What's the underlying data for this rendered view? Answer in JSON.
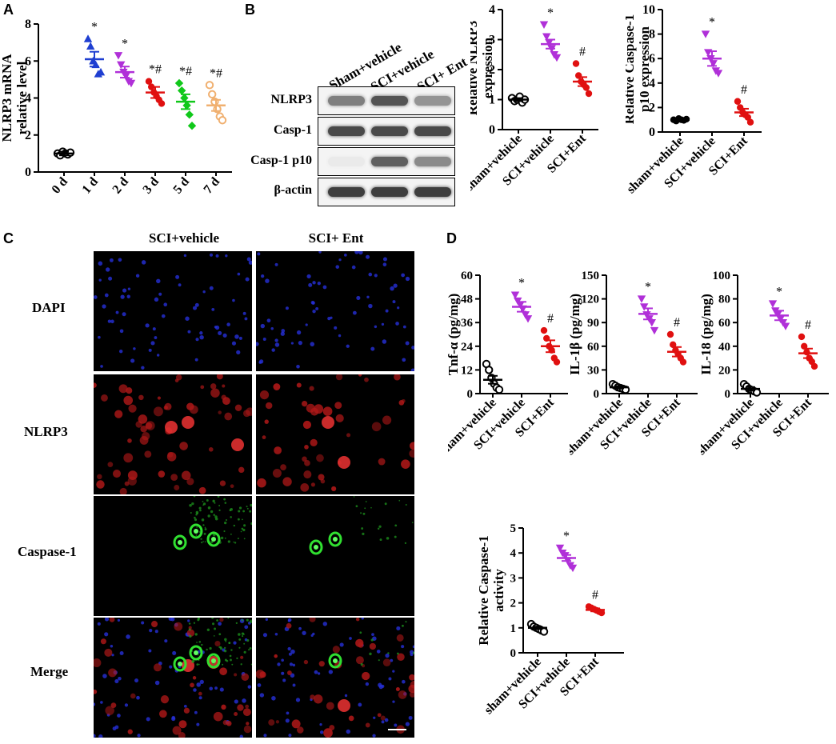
{
  "panels": [
    "A",
    "B",
    "C",
    "D"
  ],
  "colors": {
    "blue": "#1f3fd1",
    "purple": "#b030d8",
    "red": "#e01010",
    "green": "#10c81a",
    "orange": "#f0b070",
    "black": "#000000",
    "magenta": "#b030d8"
  },
  "blot": {
    "lanes": [
      "Sham+vehicle",
      "SCI+vehicle",
      "SCI+ Ent"
    ],
    "rows": [
      "NLRP3",
      "Casp-1",
      "Casp-1 p10",
      "β-actin"
    ],
    "band_intensity": [
      [
        0.55,
        0.75,
        0.45
      ],
      [
        0.8,
        0.8,
        0.8
      ],
      [
        0.05,
        0.7,
        0.5
      ],
      [
        0.85,
        0.85,
        0.85
      ]
    ]
  },
  "micro": {
    "columns": [
      "SCI+vehicle",
      "SCI+ Ent"
    ],
    "rows": [
      "DAPI",
      "NLRP3",
      "Caspase-1",
      "Merge"
    ]
  },
  "chart_data": [
    {
      "id": "A",
      "type": "scatter",
      "ylabel": "NLRP3 mRNA relative level",
      "categories": [
        "0 d",
        "1 d",
        "2 d",
        "3 d",
        "5 d",
        "7 d"
      ],
      "ylim": [
        0,
        8
      ],
      "yticks": [
        0,
        2,
        4,
        6,
        8
      ],
      "means": [
        1.0,
        6.1,
        5.4,
        4.3,
        3.8,
        3.6
      ],
      "sem": [
        0.1,
        0.4,
        0.3,
        0.3,
        0.4,
        0.3
      ],
      "points": [
        [
          1.0,
          0.9,
          1.1,
          1.0,
          0.95,
          1.05
        ],
        [
          7.2,
          6.8,
          6.0,
          5.8,
          5.3,
          5.4
        ],
        [
          6.3,
          5.8,
          5.4,
          5.2,
          4.9,
          4.8
        ],
        [
          4.9,
          4.6,
          4.3,
          4.1,
          3.9,
          3.7
        ],
        [
          4.8,
          4.4,
          4.0,
          3.6,
          3.1,
          2.5
        ],
        [
          4.7,
          4.2,
          3.8,
          3.4,
          3.0,
          2.8
        ]
      ],
      "markers": [
        "circle-open",
        "triangle-up",
        "triangle-down",
        "circle",
        "diamond",
        "circle-open"
      ],
      "point_colors": [
        "black",
        "blue",
        "purple",
        "red",
        "green",
        "orange"
      ],
      "annotations": [
        "",
        "*",
        "*",
        "*#",
        "*#",
        "*#"
      ]
    },
    {
      "id": "B1",
      "type": "scatter",
      "ylabel": "Relative NLRP3 expression",
      "categories": [
        "sham+vehicle",
        "SCI+vehicle",
        "SCI+Ent"
      ],
      "ylim": [
        0,
        4
      ],
      "yticks": [
        0,
        1,
        2,
        3,
        4
      ],
      "means": [
        1.0,
        2.85,
        1.6
      ],
      "sem": [
        0.05,
        0.15,
        0.15
      ],
      "points": [
        [
          1.05,
          0.95,
          1.0,
          1.1,
          0.9,
          1.0
        ],
        [
          3.5,
          3.1,
          2.9,
          2.7,
          2.5,
          2.4
        ],
        [
          2.2,
          1.8,
          1.6,
          1.5,
          1.4,
          1.2
        ]
      ],
      "markers": [
        "circle-open",
        "triangle-down",
        "circle"
      ],
      "point_colors": [
        "black",
        "purple",
        "red"
      ],
      "annotations": [
        "",
        "*",
        "#"
      ]
    },
    {
      "id": "B2",
      "type": "scatter",
      "ylabel": "Relative Caspase-1 p10 expression",
      "categories": [
        "sham+vehicle",
        "SCI+vehicle",
        "SCI+Ent"
      ],
      "ylim": [
        0,
        10
      ],
      "yticks": [
        0,
        2,
        4,
        6,
        8,
        10
      ],
      "means": [
        1.0,
        6.0,
        1.6
      ],
      "sem": [
        0.05,
        0.6,
        0.3
      ],
      "points": [
        [
          1.0,
          0.9,
          1.1,
          1.0,
          0.95,
          1.05
        ],
        [
          8.0,
          6.5,
          6.0,
          5.6,
          5.0,
          4.8
        ],
        [
          2.5,
          2.0,
          1.6,
          1.4,
          1.2,
          0.8
        ]
      ],
      "markers": [
        "circle",
        "triangle-down",
        "circle"
      ],
      "point_colors": [
        "black",
        "purple",
        "red"
      ],
      "annotations": [
        "",
        "*",
        "#"
      ]
    },
    {
      "id": "D1",
      "type": "scatter",
      "ylabel": "Tnf-α  (pg/mg)",
      "categories": [
        "sham+vehicle",
        "SCI+vehicle",
        "SCI+Ent"
      ],
      "ylim": [
        0,
        60
      ],
      "yticks": [
        0,
        12,
        24,
        36,
        48,
        60
      ],
      "means": [
        7,
        44,
        24
      ],
      "sem": [
        2,
        2.5,
        3
      ],
      "points": [
        [
          15,
          12,
          8,
          5,
          3,
          2
        ],
        [
          50,
          47,
          45,
          43,
          40,
          38
        ],
        [
          32,
          28,
          24,
          22,
          18,
          16
        ]
      ],
      "markers": [
        "circle-open",
        "triangle-down",
        "circle"
      ],
      "point_colors": [
        "black",
        "purple",
        "red"
      ],
      "annotations": [
        "",
        "*",
        "#"
      ]
    },
    {
      "id": "D2",
      "type": "scatter",
      "ylabel": "IL-1β   (pg/mg)",
      "categories": [
        "sham+vehicle",
        "SCI+vehicle",
        "SCI+Ent"
      ],
      "ylim": [
        0,
        150
      ],
      "yticks": [
        0,
        30,
        60,
        90,
        120,
        150
      ],
      "means": [
        8,
        101,
        53
      ],
      "sem": [
        1.5,
        7,
        6
      ],
      "points": [
        [
          12,
          10,
          8,
          7,
          6,
          5
        ],
        [
          120,
          110,
          100,
          95,
          90,
          80
        ],
        [
          75,
          62,
          55,
          50,
          45,
          40
        ]
      ],
      "markers": [
        "circle-open",
        "triangle-down",
        "circle"
      ],
      "point_colors": [
        "black",
        "purple",
        "red"
      ],
      "annotations": [
        "",
        "*",
        "#"
      ]
    },
    {
      "id": "D3",
      "type": "scatter",
      "ylabel": "IL-18 (pg/mg)",
      "categories": [
        "sham+vehicle",
        "SCI+vehicle",
        "SCI+Ent"
      ],
      "ylim": [
        0,
        100
      ],
      "yticks": [
        0,
        20,
        40,
        60,
        80,
        100
      ],
      "means": [
        4,
        66,
        34
      ],
      "sem": [
        1.5,
        4,
        4
      ],
      "points": [
        [
          8,
          6,
          4,
          3,
          2,
          1
        ],
        [
          76,
          70,
          67,
          63,
          60,
          57
        ],
        [
          48,
          40,
          35,
          30,
          27,
          23
        ]
      ],
      "markers": [
        "circle-open",
        "triangle-down",
        "circle"
      ],
      "point_colors": [
        "black",
        "purple",
        "red"
      ],
      "annotations": [
        "",
        "*",
        "#"
      ]
    },
    {
      "id": "D4",
      "type": "scatter",
      "ylabel": "Relative Caspase-1 activity",
      "categories": [
        "sham+vehicle",
        "SCI+vehicle",
        "SCI+Ent"
      ],
      "ylim": [
        0,
        5
      ],
      "yticks": [
        0,
        1,
        2,
        3,
        4,
        5
      ],
      "means": [
        1.0,
        3.8,
        1.72
      ],
      "sem": [
        0.05,
        0.12,
        0.06
      ],
      "points": [
        [
          1.15,
          1.05,
          1.0,
          0.95,
          0.9,
          0.85
        ],
        [
          4.2,
          4.0,
          3.9,
          3.7,
          3.5,
          3.4
        ],
        [
          1.85,
          1.8,
          1.75,
          1.7,
          1.65,
          1.6
        ]
      ],
      "markers": [
        "circle-open",
        "triangle-down",
        "circle"
      ],
      "point_colors": [
        "black",
        "purple",
        "red"
      ],
      "annotations": [
        "",
        "*",
        "#"
      ]
    }
  ]
}
